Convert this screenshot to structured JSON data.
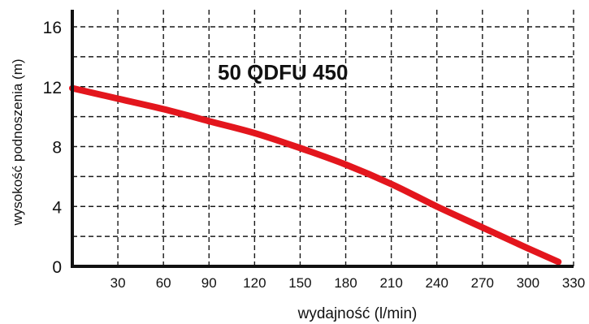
{
  "chart_data": {
    "type": "line",
    "title": "50 QDFU 450",
    "xlabel": "wydajność (l/min)",
    "ylabel": "wysokość podnoszenia (m)",
    "xlim": [
      0,
      330
    ],
    "ylim": [
      0,
      16
    ],
    "x_ticks": [
      30,
      60,
      90,
      120,
      150,
      180,
      210,
      240,
      270,
      300,
      330
    ],
    "x_tick_labels": [
      "30",
      "60",
      "90",
      "120",
      "150",
      "180",
      "210",
      "240",
      "270",
      "300",
      "330"
    ],
    "y_ticks": [
      0,
      4,
      8,
      12,
      16
    ],
    "y_tick_labels": [
      "0",
      "4",
      "8",
      "12",
      "16"
    ],
    "grid": true,
    "series": [
      {
        "color": "#e3161d",
        "x": [
          0,
          30,
          60,
          90,
          120,
          150,
          180,
          210,
          240,
          270,
          300,
          320
        ],
        "y": [
          11.9,
          11.2,
          10.5,
          9.7,
          8.9,
          7.9,
          6.8,
          5.5,
          4.0,
          2.6,
          1.2,
          0.3
        ]
      }
    ]
  }
}
